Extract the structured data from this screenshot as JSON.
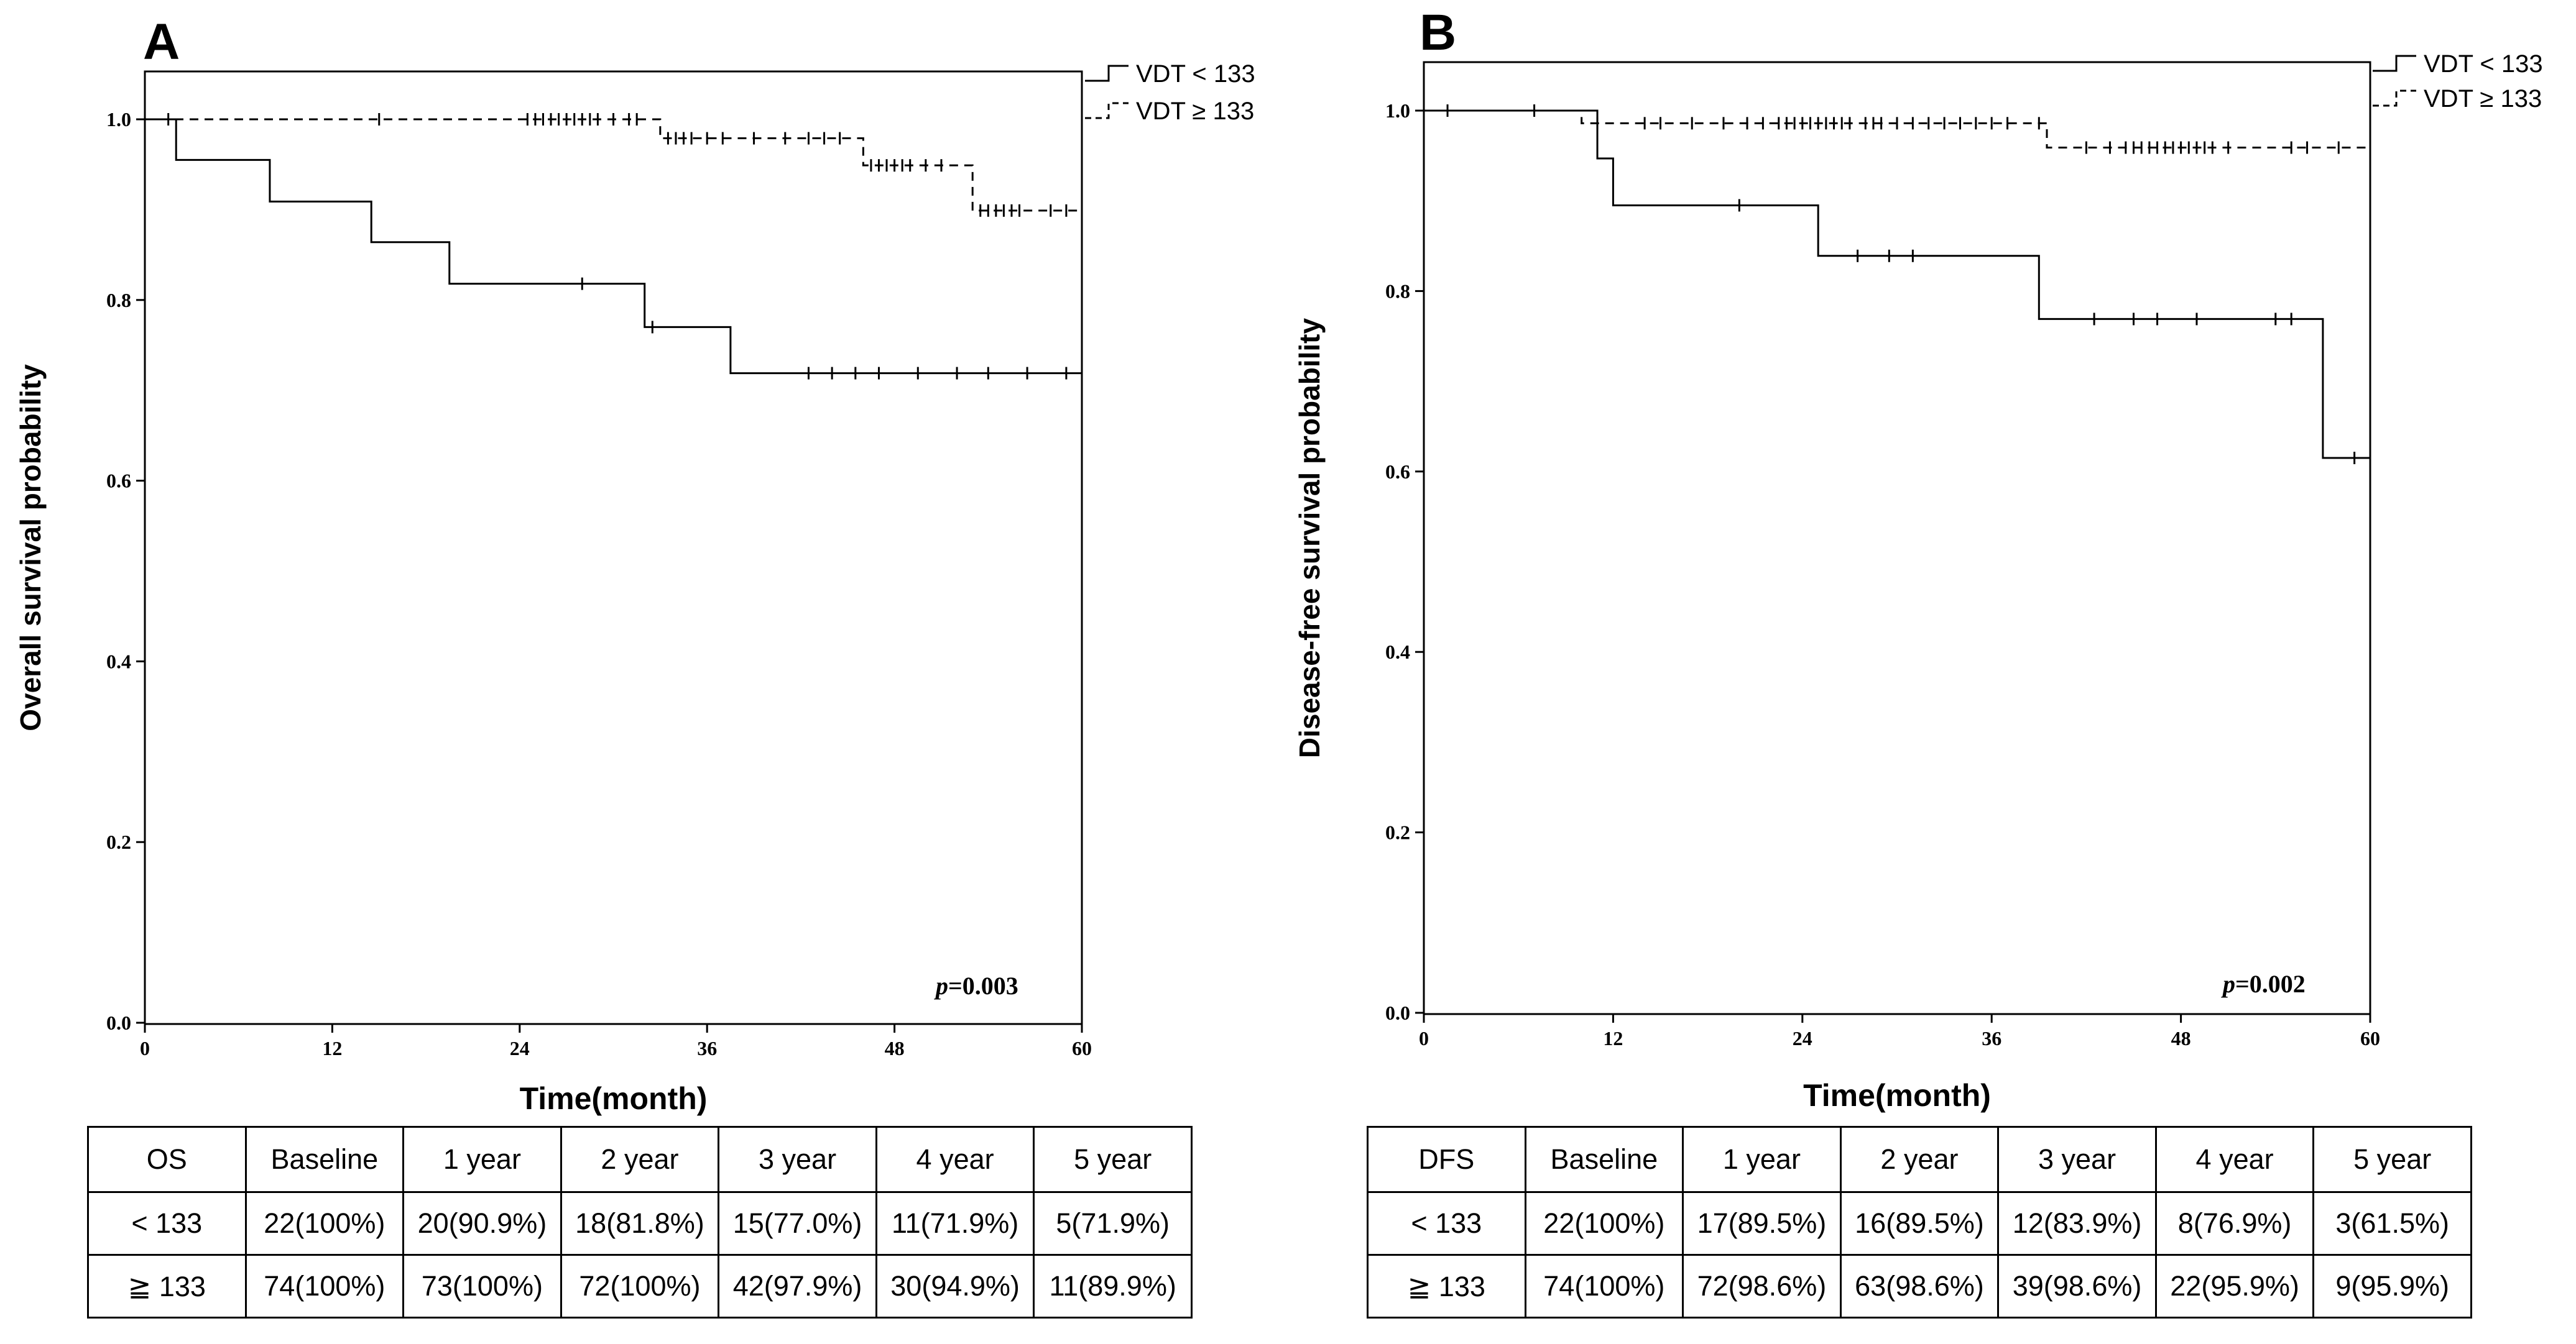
{
  "chart_data": [
    {
      "type": "line",
      "panel_label": "A",
      "ylabel": "Overall survival probability",
      "xlabel": "Time(month)",
      "xlim": [
        0,
        60
      ],
      "ylim": [
        0,
        1.0
      ],
      "xticks": [
        0,
        12,
        24,
        36,
        48,
        60
      ],
      "yticks": [
        0.0,
        0.2,
        0.4,
        0.6,
        0.8,
        1.0
      ],
      "p_label": "p",
      "p_value": "=0.003",
      "legend_position": "top-right outside",
      "series": [
        {
          "name": "VDT < 133",
          "style": "solid",
          "steps": [
            [
              0,
              1.0
            ],
            [
              2,
              0.955
            ],
            [
              8,
              0.909
            ],
            [
              14.5,
              0.864
            ],
            [
              19.5,
              0.818
            ],
            [
              28,
              0.818
            ],
            [
              32,
              0.77
            ],
            [
              37.5,
              0.719
            ],
            [
              60,
              0.719
            ]
          ],
          "censored": [
            [
              28,
              0.818
            ],
            [
              32.5,
              0.77
            ],
            [
              42.5,
              0.719
            ],
            [
              44,
              0.719
            ],
            [
              45.5,
              0.719
            ],
            [
              47,
              0.719
            ],
            [
              49.5,
              0.719
            ],
            [
              52,
              0.719
            ],
            [
              54,
              0.719
            ],
            [
              56.5,
              0.719
            ],
            [
              59,
              0.719
            ],
            [
              60,
              0.719
            ]
          ]
        },
        {
          "name": "VDT ≥ 133",
          "style": "dashed",
          "steps": [
            [
              0,
              1.0
            ],
            [
              33,
              0.979
            ],
            [
              46,
              0.949
            ],
            [
              53,
              0.899
            ],
            [
              60,
              0.899
            ]
          ],
          "censored": [
            [
              1.5,
              1.0
            ],
            [
              15,
              1.0
            ],
            [
              24.5,
              1.0
            ],
            [
              25,
              1.0
            ],
            [
              25.5,
              1.0
            ],
            [
              26,
              1.0
            ],
            [
              26.5,
              1.0
            ],
            [
              27,
              1.0
            ],
            [
              27.5,
              1.0
            ],
            [
              28,
              1.0
            ],
            [
              28.5,
              1.0
            ],
            [
              29,
              1.0
            ],
            [
              30,
              1.0
            ],
            [
              31,
              1.0
            ],
            [
              31.5,
              1.0
            ],
            [
              33.5,
              0.979
            ],
            [
              34,
              0.979
            ],
            [
              34.5,
              0.979
            ],
            [
              35,
              0.979
            ],
            [
              36,
              0.979
            ],
            [
              37,
              0.979
            ],
            [
              39,
              0.979
            ],
            [
              41,
              0.979
            ],
            [
              42.5,
              0.979
            ],
            [
              43.5,
              0.979
            ],
            [
              44.5,
              0.979
            ],
            [
              46.5,
              0.949
            ],
            [
              47,
              0.949
            ],
            [
              47.5,
              0.949
            ],
            [
              48,
              0.949
            ],
            [
              48.5,
              0.949
            ],
            [
              49,
              0.949
            ],
            [
              50,
              0.949
            ],
            [
              51,
              0.949
            ],
            [
              53.5,
              0.899
            ],
            [
              54,
              0.899
            ],
            [
              54.5,
              0.899
            ],
            [
              55,
              0.899
            ],
            [
              55.5,
              0.899
            ],
            [
              56,
              0.899
            ],
            [
              58,
              0.899
            ],
            [
              59,
              0.899
            ],
            [
              60,
              0.899
            ]
          ]
        }
      ]
    },
    {
      "type": "line",
      "panel_label": "B",
      "ylabel": "Disease-free survival probability",
      "xlabel": "Time(month)",
      "xlim": [
        0,
        60
      ],
      "ylim": [
        0,
        1.0
      ],
      "xticks": [
        0,
        12,
        24,
        36,
        48,
        60
      ],
      "yticks": [
        0.0,
        0.2,
        0.4,
        0.6,
        0.8,
        1.0
      ],
      "p_label": "p",
      "p_value": "=0.002",
      "legend_position": "top-right outside",
      "series": [
        {
          "name": "VDT < 133",
          "style": "solid",
          "steps": [
            [
              0,
              1.0
            ],
            [
              11,
              0.947
            ],
            [
              12,
              0.895
            ],
            [
              25,
              0.839
            ],
            [
              39,
              0.769
            ],
            [
              57,
              0.615
            ],
            [
              60,
              0.615
            ]
          ],
          "censored": [
            [
              7,
              1.0
            ],
            [
              20,
              0.895
            ],
            [
              27.5,
              0.839
            ],
            [
              29.5,
              0.839
            ],
            [
              31,
              0.839
            ],
            [
              42.5,
              0.769
            ],
            [
              45,
              0.769
            ],
            [
              46.5,
              0.769
            ],
            [
              49,
              0.769
            ],
            [
              54,
              0.769
            ],
            [
              55,
              0.769
            ],
            [
              59,
              0.615
            ],
            [
              60,
              0.615
            ]
          ]
        },
        {
          "name": "VDT ≥ 133",
          "style": "dashed",
          "steps": [
            [
              0,
              1.0
            ],
            [
              10,
              0.986
            ],
            [
              39.5,
              0.959
            ],
            [
              60,
              0.959
            ]
          ],
          "censored": [
            [
              1.5,
              1.0
            ],
            [
              11,
              0.986
            ],
            [
              14,
              0.986
            ],
            [
              15,
              0.986
            ],
            [
              17,
              0.986
            ],
            [
              19,
              0.986
            ],
            [
              20.5,
              0.986
            ],
            [
              21.5,
              0.986
            ],
            [
              22.5,
              0.986
            ],
            [
              23,
              0.986
            ],
            [
              23.5,
              0.986
            ],
            [
              24,
              0.986
            ],
            [
              24.5,
              0.986
            ],
            [
              25,
              0.986
            ],
            [
              25.5,
              0.986
            ],
            [
              26,
              0.986
            ],
            [
              26.5,
              0.986
            ],
            [
              27,
              0.986
            ],
            [
              28,
              0.986
            ],
            [
              28.5,
              0.986
            ],
            [
              29,
              0.986
            ],
            [
              30,
              0.986
            ],
            [
              31,
              0.986
            ],
            [
              32,
              0.986
            ],
            [
              33,
              0.986
            ],
            [
              34,
              0.986
            ],
            [
              35,
              0.986
            ],
            [
              36,
              0.986
            ],
            [
              37,
              0.986
            ],
            [
              39,
              0.986
            ],
            [
              42,
              0.959
            ],
            [
              43.5,
              0.959
            ],
            [
              44.5,
              0.959
            ],
            [
              45,
              0.959
            ],
            [
              45.5,
              0.959
            ],
            [
              46,
              0.959
            ],
            [
              46.5,
              0.959
            ],
            [
              47,
              0.959
            ],
            [
              47.5,
              0.959
            ],
            [
              48,
              0.959
            ],
            [
              48.5,
              0.959
            ],
            [
              49,
              0.959
            ],
            [
              49.5,
              0.959
            ],
            [
              50,
              0.959
            ],
            [
              51,
              0.959
            ],
            [
              55,
              0.959
            ],
            [
              56,
              0.959
            ],
            [
              58,
              0.959
            ],
            [
              60,
              0.959
            ]
          ]
        }
      ]
    }
  ],
  "tables": [
    {
      "headers": [
        "OS",
        "Baseline",
        "1 year",
        "2 year",
        "3 year",
        "4 year",
        "5 year"
      ],
      "rows": [
        [
          "< 133",
          "22(100%)",
          "20(90.9%)",
          "18(81.8%)",
          "15(77.0%)",
          "11(71.9%)",
          "5(71.9%)"
        ],
        [
          "≧ 133",
          "74(100%)",
          "73(100%)",
          "72(100%)",
          "42(97.9%)",
          "30(94.9%)",
          "11(89.9%)"
        ]
      ]
    },
    {
      "headers": [
        "DFS",
        "Baseline",
        "1 year",
        "2 year",
        "3 year",
        "4 year",
        "5 year"
      ],
      "rows": [
        [
          "< 133",
          "22(100%)",
          "17(89.5%)",
          "16(89.5%)",
          "12(83.9%)",
          "8(76.9%)",
          "3(61.5%)"
        ],
        [
          "≧ 133",
          "74(100%)",
          "72(98.6%)",
          "63(98.6%)",
          "39(98.6%)",
          "22(95.9%)",
          "9(95.9%)"
        ]
      ]
    }
  ]
}
